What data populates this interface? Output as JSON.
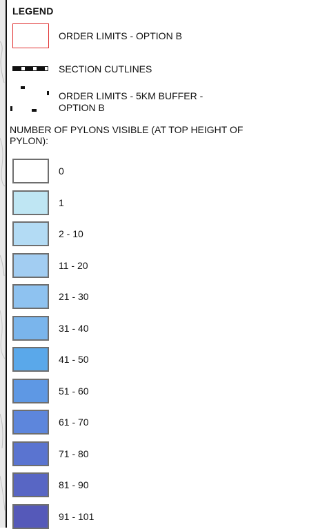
{
  "legend": {
    "title": "LEGEND",
    "order_limits": {
      "label": "ORDER LIMITS - OPTION B",
      "color": "#e03030"
    },
    "section_cutlines": {
      "label": "SECTION CUTLINES"
    },
    "buffer": {
      "line1": "ORDER LIMITS - 5KM BUFFER -",
      "line2": "OPTION B"
    },
    "pylons_title": "NUMBER OF PYLONS VISIBLE (AT TOP HEIGHT OF PYLON):",
    "classes": [
      {
        "label": "0",
        "color": "#ffffff"
      },
      {
        "label": "1",
        "color": "#bfe6f3"
      },
      {
        "label": "2 - 10",
        "color": "#b3dbf4"
      },
      {
        "label": "11 - 20",
        "color": "#a2cdf2"
      },
      {
        "label": "21 - 30",
        "color": "#8ec2f0"
      },
      {
        "label": "31 - 40",
        "color": "#7ab5ec"
      },
      {
        "label": "41 - 50",
        "color": "#5aa8ea"
      },
      {
        "label": "51 - 60",
        "color": "#5e98e4"
      },
      {
        "label": "61 - 70",
        "color": "#5d86dc"
      },
      {
        "label": "71 - 80",
        "color": "#5a74d0"
      },
      {
        "label": "81 - 90",
        "color": "#5866c4"
      },
      {
        "label": "91 - 101",
        "color": "#5559b9"
      }
    ]
  }
}
